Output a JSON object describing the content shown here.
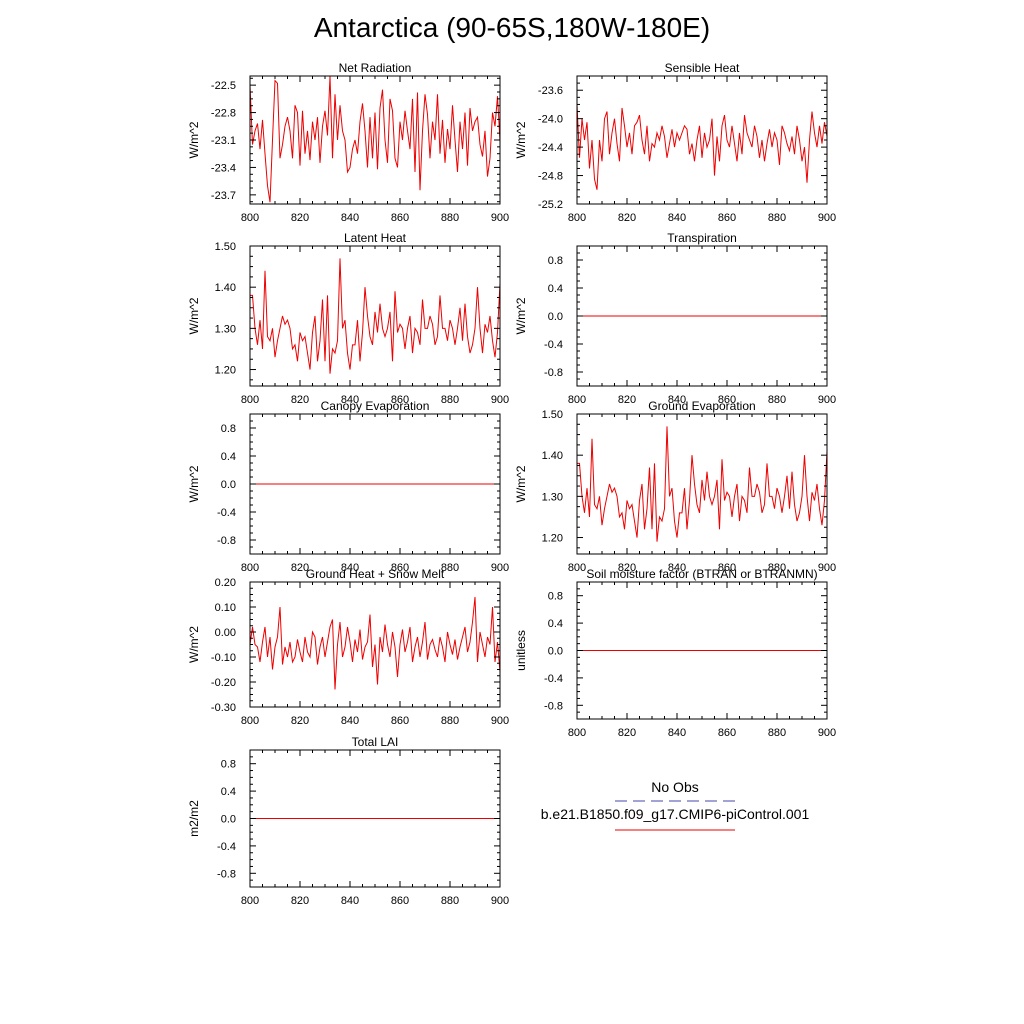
{
  "title": "Antarctica (90-65S,180W-180E)",
  "legend": {
    "items": [
      {
        "name": "No Obs",
        "color": "#4444aa",
        "dash": true
      },
      {
        "name": "b.e21.B1850.f09_g17.CMIP6-piControl.001",
        "color": "#ee0000",
        "dash": false
      }
    ]
  },
  "chart_data": [
    {
      "id": "net-radiation",
      "type": "line",
      "title": "Net Radiation",
      "ylabel": "W/m^2",
      "xlim": [
        800,
        900
      ],
      "ylim": [
        -23.8,
        -22.4
      ],
      "xticks": [
        800,
        820,
        840,
        860,
        880,
        900
      ],
      "yticks": [
        -22.5,
        -22.8,
        -23.1,
        -23.4,
        -23.7
      ],
      "ytick_labels": [
        "-22.5",
        "-22.8",
        "-23.1",
        "-23.4",
        "-23.7"
      ],
      "x_start": 800,
      "x_step": 1,
      "color": "#ee0000",
      "values": [
        -22.5,
        -23.15,
        -23.0,
        -22.92,
        -23.2,
        -22.88,
        -23.25,
        -23.6,
        -23.78,
        -23.1,
        -22.45,
        -22.48,
        -23.3,
        -23.15,
        -22.95,
        -22.85,
        -23.0,
        -23.3,
        -22.72,
        -22.8,
        -23.38,
        -22.78,
        -23.25,
        -23.0,
        -23.32,
        -22.9,
        -23.1,
        -22.85,
        -23.35,
        -22.95,
        -22.78,
        -23.05,
        -22.4,
        -23.3,
        -22.6,
        -23.1,
        -22.72,
        -23.0,
        -23.1,
        -23.45,
        -23.4,
        -23.2,
        -23.1,
        -23.25,
        -22.9,
        -22.7,
        -23.0,
        -23.4,
        -22.85,
        -23.3,
        -22.8,
        -23.42,
        -22.75,
        -22.55,
        -23.1,
        -23.35,
        -22.65,
        -22.78,
        -23.3,
        -23.4,
        -22.9,
        -23.1,
        -22.78,
        -23.0,
        -23.2,
        -22.65,
        -23.45,
        -22.58,
        -23.65,
        -23.0,
        -22.6,
        -22.82,
        -23.3,
        -22.9,
        -23.1,
        -22.6,
        -23.25,
        -22.88,
        -23.35,
        -22.98,
        -23.2,
        -22.72,
        -23.1,
        -23.45,
        -22.9,
        -23.2,
        -22.8,
        -23.38,
        -22.75,
        -23.0,
        -22.9,
        -22.85,
        -23.15,
        -23.28,
        -23.0,
        -23.5,
        -23.3,
        -22.8,
        -22.95,
        -22.62,
        -23.12
      ]
    },
    {
      "id": "sensible-heat",
      "type": "line",
      "title": "Sensible Heat",
      "ylabel": "W/m^2",
      "xlim": [
        800,
        900
      ],
      "ylim": [
        -25.2,
        -23.4
      ],
      "xticks": [
        800,
        820,
        840,
        860,
        880,
        900
      ],
      "yticks": [
        -23.6,
        -24.0,
        -24.4,
        -24.8,
        -25.2
      ],
      "ytick_labels": [
        "-23.6",
        "-24.0",
        "-24.4",
        "-24.8",
        "-25.2"
      ],
      "x_start": 800,
      "x_step": 1,
      "color": "#ee0000",
      "values": [
        -23.8,
        -24.55,
        -24.0,
        -24.3,
        -24.05,
        -24.7,
        -24.3,
        -24.85,
        -25.0,
        -24.3,
        -24.6,
        -24.0,
        -23.9,
        -24.5,
        -24.2,
        -24.0,
        -24.35,
        -24.6,
        -23.85,
        -24.1,
        -24.4,
        -24.2,
        -24.5,
        -24.1,
        -24.05,
        -23.95,
        -24.3,
        -24.5,
        -24.1,
        -24.6,
        -24.35,
        -24.4,
        -24.2,
        -24.3,
        -24.1,
        -24.25,
        -24.55,
        -24.35,
        -24.15,
        -24.4,
        -24.2,
        -24.3,
        -24.2,
        -24.1,
        -24.15,
        -24.5,
        -24.35,
        -24.6,
        -24.3,
        -24.1,
        -24.55,
        -24.2,
        -24.4,
        -24.3,
        -24.0,
        -24.8,
        -24.25,
        -24.6,
        -24.1,
        -23.95,
        -24.3,
        -24.4,
        -24.1,
        -24.35,
        -24.6,
        -24.2,
        -24.5,
        -23.95,
        -24.2,
        -24.3,
        -24.4,
        -24.1,
        -24.25,
        -24.55,
        -24.3,
        -24.6,
        -24.35,
        -24.15,
        -24.4,
        -24.2,
        -24.3,
        -24.65,
        -24.1,
        -24.2,
        -24.35,
        -24.45,
        -24.25,
        -24.5,
        -24.1,
        -24.3,
        -24.6,
        -24.4,
        -24.9,
        -24.3,
        -23.9,
        -24.2,
        -24.4,
        -24.1,
        -24.35,
        -24.05,
        -24.25
      ]
    },
    {
      "id": "latent-heat",
      "type": "line",
      "title": "Latent Heat",
      "ylabel": "W/m^2",
      "xlim": [
        800,
        900
      ],
      "ylim": [
        1.16,
        1.5
      ],
      "xticks": [
        800,
        820,
        840,
        860,
        880,
        900
      ],
      "yticks": [
        1.2,
        1.3,
        1.4,
        1.5
      ],
      "ytick_labels": [
        "1.20",
        "1.30",
        "1.40",
        "1.50"
      ],
      "x_start": 800,
      "x_step": 1,
      "color": "#ee0000",
      "values": [
        1.38,
        1.38,
        1.3,
        1.26,
        1.32,
        1.25,
        1.44,
        1.28,
        1.27,
        1.3,
        1.23,
        1.27,
        1.3,
        1.33,
        1.31,
        1.32,
        1.3,
        1.25,
        1.26,
        1.22,
        1.29,
        1.27,
        1.28,
        1.24,
        1.2,
        1.29,
        1.33,
        1.22,
        1.27,
        1.37,
        1.22,
        1.38,
        1.19,
        1.25,
        1.24,
        1.27,
        1.47,
        1.3,
        1.32,
        1.24,
        1.2,
        1.26,
        1.26,
        1.32,
        1.22,
        1.29,
        1.4,
        1.33,
        1.28,
        1.26,
        1.34,
        1.29,
        1.36,
        1.3,
        1.28,
        1.3,
        1.34,
        1.22,
        1.39,
        1.29,
        1.31,
        1.3,
        1.25,
        1.3,
        1.33,
        1.24,
        1.3,
        1.29,
        1.26,
        1.37,
        1.3,
        1.3,
        1.33,
        1.31,
        1.26,
        1.28,
        1.38,
        1.3,
        1.3,
        1.27,
        1.32,
        1.3,
        1.26,
        1.3,
        1.35,
        1.27,
        1.36,
        1.28,
        1.24,
        1.26,
        1.3,
        1.4,
        1.3,
        1.24,
        1.31,
        1.29,
        1.33,
        1.27,
        1.23,
        1.29,
        1.41
      ]
    },
    {
      "id": "transpiration",
      "type": "line",
      "title": "Transpiration",
      "ylabel": "W/m^2",
      "xlim": [
        800,
        900
      ],
      "ylim": [
        -1,
        1
      ],
      "xticks": [
        800,
        820,
        840,
        860,
        880,
        900
      ],
      "yticks": [
        0.8,
        0.4,
        0,
        -0.4,
        -0.8
      ],
      "ytick_labels": [
        "0.8",
        "0.4",
        "0.0",
        "-0.4",
        "-0.8"
      ],
      "x": [
        800,
        900
      ],
      "values": [
        0,
        0
      ],
      "color": "#ee0000"
    },
    {
      "id": "canopy-evaporation",
      "type": "line",
      "title": "Canopy Evaporation",
      "ylabel": "W/m^2",
      "xlim": [
        800,
        900
      ],
      "ylim": [
        -1,
        1
      ],
      "xticks": [
        800,
        820,
        840,
        860,
        880,
        900
      ],
      "yticks": [
        0.8,
        0.4,
        0,
        -0.4,
        -0.8
      ],
      "ytick_labels": [
        "0.8",
        "0.4",
        "0.0",
        "-0.4",
        "-0.8"
      ],
      "x": [
        800,
        900
      ],
      "values": [
        0,
        0
      ],
      "color": "#ee0000"
    },
    {
      "id": "ground-evaporation",
      "type": "line",
      "title": "Ground Evaporation",
      "ylabel": "W/m^2",
      "xlim": [
        800,
        900
      ],
      "ylim": [
        1.16,
        1.5
      ],
      "xticks": [
        800,
        820,
        840,
        860,
        880,
        900
      ],
      "yticks": [
        1.2,
        1.3,
        1.4,
        1.5
      ],
      "ytick_labels": [
        "1.20",
        "1.30",
        "1.40",
        "1.50"
      ],
      "x_start": 800,
      "x_step": 1,
      "color": "#ee0000",
      "values": [
        1.38,
        1.38,
        1.3,
        1.26,
        1.32,
        1.25,
        1.44,
        1.28,
        1.27,
        1.3,
        1.23,
        1.27,
        1.3,
        1.33,
        1.31,
        1.32,
        1.3,
        1.25,
        1.26,
        1.22,
        1.29,
        1.27,
        1.28,
        1.24,
        1.2,
        1.29,
        1.33,
        1.22,
        1.27,
        1.37,
        1.22,
        1.38,
        1.19,
        1.25,
        1.24,
        1.27,
        1.47,
        1.3,
        1.32,
        1.24,
        1.2,
        1.26,
        1.26,
        1.32,
        1.22,
        1.29,
        1.4,
        1.33,
        1.28,
        1.26,
        1.34,
        1.29,
        1.36,
        1.3,
        1.28,
        1.3,
        1.34,
        1.22,
        1.39,
        1.29,
        1.31,
        1.3,
        1.25,
        1.3,
        1.33,
        1.24,
        1.3,
        1.29,
        1.26,
        1.37,
        1.3,
        1.3,
        1.33,
        1.31,
        1.26,
        1.28,
        1.38,
        1.3,
        1.3,
        1.27,
        1.32,
        1.3,
        1.26,
        1.3,
        1.35,
        1.27,
        1.36,
        1.28,
        1.24,
        1.26,
        1.3,
        1.4,
        1.3,
        1.24,
        1.31,
        1.29,
        1.33,
        1.27,
        1.23,
        1.29,
        1.41
      ]
    },
    {
      "id": "ground-heat-snow-melt",
      "type": "line",
      "title": "Ground Heat + Snow Melt",
      "ylabel": "W/m^2",
      "xlim": [
        800,
        900
      ],
      "ylim": [
        -0.3,
        0.2
      ],
      "xticks": [
        800,
        820,
        840,
        860,
        880,
        900
      ],
      "yticks": [
        0.2,
        0.1,
        0,
        -0.1,
        -0.2,
        -0.3
      ],
      "ytick_labels": [
        "0.20",
        "0.10",
        "0.00",
        "-0.10",
        "-0.20",
        "-0.30"
      ],
      "x_start": 800,
      "x_step": 1,
      "color": "#ee0000",
      "values": [
        -0.05,
        0.02,
        -0.05,
        -0.06,
        -0.12,
        -0.04,
        0.02,
        -0.1,
        -0.02,
        -0.15,
        -0.06,
        -0.02,
        0.1,
        -0.13,
        -0.06,
        -0.1,
        -0.04,
        -0.12,
        -0.1,
        -0.03,
        -0.08,
        -0.12,
        -0.02,
        -0.08,
        -0.1,
        0.0,
        -0.02,
        -0.13,
        -0.06,
        -0.02,
        -0.1,
        -0.04,
        0.02,
        0.05,
        -0.23,
        -0.05,
        0.04,
        -0.1,
        -0.06,
        0.02,
        -0.04,
        -0.12,
        -0.03,
        -0.08,
        0.01,
        -0.11,
        -0.06,
        -0.04,
        0.07,
        -0.14,
        -0.05,
        -0.21,
        -0.02,
        -0.08,
        0.03,
        -0.05,
        -0.1,
        0.0,
        -0.06,
        -0.18,
        -0.05,
        0.01,
        -0.08,
        -0.04,
        0.02,
        -0.12,
        -0.06,
        -0.02,
        -0.1,
        -0.04,
        0.04,
        -0.11,
        -0.05,
        -0.03,
        -0.07,
        -0.1,
        -0.02,
        -0.06,
        -0.12,
        0.0,
        -0.05,
        -0.09,
        -0.03,
        -0.11,
        -0.06,
        -0.02,
        0.02,
        -0.08,
        -0.04,
        0.04,
        0.14,
        -0.12,
        0.0,
        -0.05,
        -0.1,
        -0.02,
        -0.05,
        0.1,
        -0.12,
        -0.04,
        -0.16
      ]
    },
    {
      "id": "soil-moisture-factor",
      "type": "line",
      "title": "Soil moisture factor (BTRAN or BTRANMN)",
      "ylabel": "unitless",
      "xlim": [
        800,
        900
      ],
      "ylim": [
        -1,
        1
      ],
      "xticks": [
        800,
        820,
        840,
        860,
        880,
        900
      ],
      "yticks": [
        0.8,
        0.4,
        0,
        -0.4,
        -0.8
      ],
      "ytick_labels": [
        "0.8",
        "0.4",
        "0.0",
        "-0.4",
        "-0.8"
      ],
      "x": [
        800,
        900
      ],
      "values": [
        0,
        0
      ],
      "color": "#ee0000"
    },
    {
      "id": "total-lai",
      "type": "line",
      "title": "Total LAI",
      "ylabel": "m2/m2",
      "xlim": [
        800,
        900
      ],
      "ylim": [
        -1,
        1
      ],
      "xticks": [
        800,
        820,
        840,
        860,
        880,
        900
      ],
      "yticks": [
        0.8,
        0.4,
        0,
        -0.4,
        -0.8
      ],
      "ytick_labels": [
        "0.8",
        "0.4",
        "0.0",
        "-0.4",
        "-0.8"
      ],
      "x": [
        800,
        900
      ],
      "values": [
        0,
        0
      ],
      "color": "#ee0000"
    }
  ]
}
